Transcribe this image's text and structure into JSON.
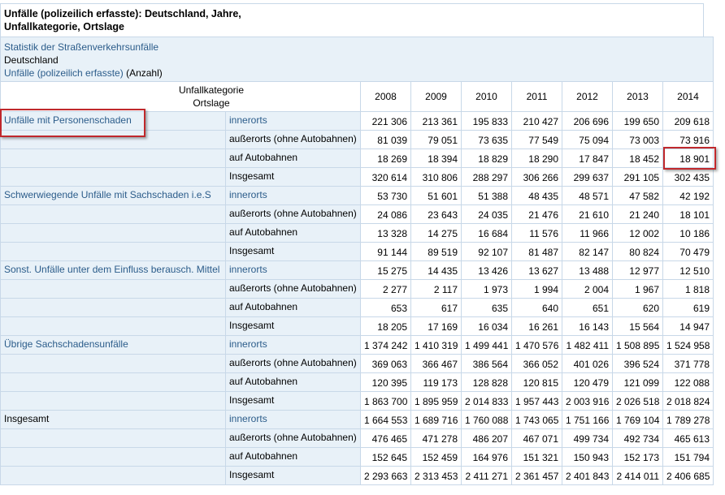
{
  "title": {
    "line1": "Unfälle (polizeilich erfasste): Deutschland, Jahre,",
    "line2": "Unfallkategorie, Ortslage"
  },
  "info": {
    "statistic": "Statistik der Straßenverkehrsunfälle",
    "region": "Deutschland",
    "measure": "Unfälle (polizeilich erfasste)",
    "unit": "(Anzahl)"
  },
  "header": {
    "dim1": "Unfallkategorie",
    "dim2": "Ortslage",
    "years": [
      "2008",
      "2009",
      "2010",
      "2011",
      "2012",
      "2013",
      "2014"
    ]
  },
  "groups": [
    {
      "category": "Unfälle mit Personenschaden",
      "rows": [
        {
          "location": "innerorts",
          "values": [
            "221 306",
            "213 361",
            "195 833",
            "210 427",
            "206 696",
            "199 650",
            "209 618"
          ]
        },
        {
          "location": "außerorts (ohne Autobahnen)",
          "values": [
            "81 039",
            "79 051",
            "73 635",
            "77 549",
            "75 094",
            "73 003",
            "73 916"
          ]
        },
        {
          "location": "auf Autobahnen",
          "values": [
            "18 269",
            "18 394",
            "18 829",
            "18 290",
            "17 847",
            "18 452",
            "18 901"
          ]
        },
        {
          "location": "Insgesamt",
          "values": [
            "320 614",
            "310 806",
            "288 297",
            "306 266",
            "299 637",
            "291 105",
            "302 435"
          ]
        }
      ]
    },
    {
      "category": "Schwerwiegende Unfälle mit Sachschaden i.e.S",
      "rows": [
        {
          "location": "innerorts",
          "values": [
            "53 730",
            "51 601",
            "51 388",
            "48 435",
            "48 571",
            "47 582",
            "42 192"
          ]
        },
        {
          "location": "außerorts (ohne Autobahnen)",
          "values": [
            "24 086",
            "23 643",
            "24 035",
            "21 476",
            "21 610",
            "21 240",
            "18 101"
          ]
        },
        {
          "location": "auf Autobahnen",
          "values": [
            "13 328",
            "14 275",
            "16 684",
            "11 576",
            "11 966",
            "12 002",
            "10 186"
          ]
        },
        {
          "location": "Insgesamt",
          "values": [
            "91 144",
            "89 519",
            "92 107",
            "81 487",
            "82 147",
            "80 824",
            "70 479"
          ]
        }
      ]
    },
    {
      "category": "Sonst. Unfälle unter dem Einfluss berausch. Mittel",
      "rows": [
        {
          "location": "innerorts",
          "values": [
            "15 275",
            "14 435",
            "13 426",
            "13 627",
            "13 488",
            "12 977",
            "12 510"
          ]
        },
        {
          "location": "außerorts (ohne Autobahnen)",
          "values": [
            "2 277",
            "2 117",
            "1 973",
            "1 994",
            "2 004",
            "1 967",
            "1 818"
          ]
        },
        {
          "location": "auf Autobahnen",
          "values": [
            "653",
            "617",
            "635",
            "640",
            "651",
            "620",
            "619"
          ]
        },
        {
          "location": "Insgesamt",
          "values": [
            "18 205",
            "17 169",
            "16 034",
            "16 261",
            "16 143",
            "15 564",
            "14 947"
          ]
        }
      ]
    },
    {
      "category": "Übrige Sachschadensunfälle",
      "rows": [
        {
          "location": "innerorts",
          "values": [
            "1 374 242",
            "1 410 319",
            "1 499 441",
            "1 470 576",
            "1 482 411",
            "1 508 895",
            "1 524 958"
          ]
        },
        {
          "location": "außerorts (ohne Autobahnen)",
          "values": [
            "369 063",
            "366 467",
            "386 564",
            "366 052",
            "401 026",
            "396 524",
            "371 778"
          ]
        },
        {
          "location": "auf Autobahnen",
          "values": [
            "120 395",
            "119 173",
            "128 828",
            "120 815",
            "120 479",
            "121 099",
            "122 088"
          ]
        },
        {
          "location": "Insgesamt",
          "values": [
            "1 863 700",
            "1 895 959",
            "2 014 833",
            "1 957 443",
            "2 003 916",
            "2 026 518",
            "2 018 824"
          ]
        }
      ]
    },
    {
      "category": "Insgesamt",
      "rows": [
        {
          "location": "innerorts",
          "values": [
            "1 664 553",
            "1 689 716",
            "1 760 088",
            "1 743 065",
            "1 751 166",
            "1 769 104",
            "1 789 278"
          ]
        },
        {
          "location": "außerorts (ohne Autobahnen)",
          "values": [
            "476 465",
            "471 278",
            "486 207",
            "467 071",
            "499 734",
            "492 734",
            "465 613"
          ]
        },
        {
          "location": "auf Autobahnen",
          "values": [
            "152 645",
            "152 459",
            "164 976",
            "151 321",
            "150 943",
            "152 173",
            "151 794"
          ]
        },
        {
          "location": "Insgesamt",
          "values": [
            "2 293 663",
            "2 313 453",
            "2 411 271",
            "2 361 457",
            "2 401 843",
            "2 414 011",
            "2 406 685"
          ]
        }
      ]
    }
  ],
  "colors": {
    "link": "#2b5c8a",
    "cell_bg": "#e8f1f8",
    "border": "#c8d8e8",
    "highlight": "#c0282c"
  }
}
